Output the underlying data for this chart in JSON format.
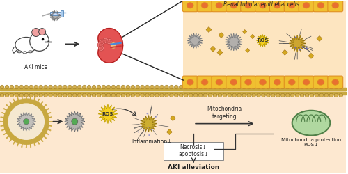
{
  "bg_top": "#ffffff",
  "bg_bottom": "#fde8d0",
  "membrane_color": "#c8a840",
  "membrane_head_color": "#d4b050",
  "cell_yellow": "#f0c030",
  "cell_orange_ring": "#e09020",
  "cell_inner": "#e87030",
  "nanoparticle_gray": "#999999",
  "nanoparticle_gold": "#c8a020",
  "ros_color": "#f5d020",
  "ros_text": "#333333",
  "arrow_color": "#333333",
  "text_color": "#222222",
  "pink_bg": "#fde0c0",
  "mitochondria_green": "#b0d8a0",
  "mitochondria_outline": "#508048",
  "labels": {
    "renal_tubular": "Renal tubular epithelial cells",
    "aki_mice": "AKI mice",
    "inflammation": "Inflammation↓",
    "mitochondria_targeting": "Mitochondria\ntargeting",
    "mitochondria_protection": "Mitochondria protection\nROS↓",
    "necrosis": "Necrosis↓\napoptosis↓",
    "aki_alleviation": "AKI alleviation",
    "ros_label": "ROS"
  }
}
